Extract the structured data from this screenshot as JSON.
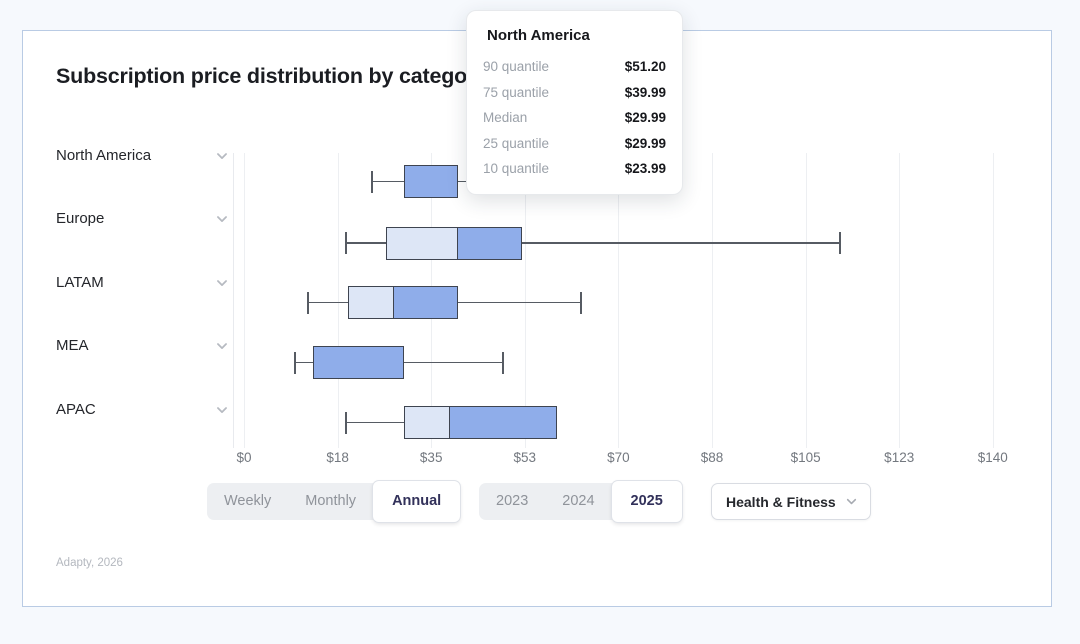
{
  "chart_data": {
    "type": "boxplot",
    "orientation": "horizontal",
    "title": "Subscription price distribution by category",
    "currency": "$",
    "x_axis": {
      "min": 0,
      "max": 140,
      "tick_values": [
        0,
        17.5,
        35,
        52.5,
        70,
        87.5,
        105,
        122.5,
        140
      ],
      "tick_labels": [
        "$0",
        "$18",
        "$35",
        "$53",
        "$70",
        "$88",
        "$105",
        "$123",
        "$140"
      ],
      "grid": true
    },
    "categories": [
      "North America",
      "Europe",
      "LATAM",
      "MEA",
      "APAC"
    ],
    "series": [
      {
        "name": "North America",
        "q10": 23.99,
        "q25": 29.99,
        "median": 29.99,
        "q75": 39.99,
        "q90": 51.2
      },
      {
        "name": "Europe",
        "q10": 18.99,
        "q25": 26.49,
        "median": 39.99,
        "q75": 51.99,
        "q90": 111.49
      },
      {
        "name": "LATAM",
        "q10": 11.99,
        "q25": 19.49,
        "median": 27.99,
        "q75": 39.99,
        "q90": 62.99
      },
      {
        "name": "MEA",
        "q10": 9.49,
        "q25": 12.99,
        "median": 12.99,
        "q75": 29.99,
        "q90": 48.49
      },
      {
        "name": "APAC",
        "q10": 18.99,
        "q25": 29.99,
        "median": 38.49,
        "q75": 58.49,
        "q90": 58.49
      }
    ]
  },
  "tooltip": {
    "title": "North America",
    "rows": [
      {
        "label": "90 quantile",
        "value": "$51.20"
      },
      {
        "label": "75 quantile",
        "value": "$39.99"
      },
      {
        "label": "Median",
        "value": "$29.99"
      },
      {
        "label": "25 quantile",
        "value": "$29.99"
      },
      {
        "label": "10 quantile",
        "value": "$23.99"
      }
    ]
  },
  "controls": {
    "period": {
      "options": [
        "Weekly",
        "Monthly",
        "Annual"
      ],
      "selected": "Annual"
    },
    "year": {
      "options": [
        "2023",
        "2024",
        "2025"
      ],
      "selected": "2025"
    },
    "category": {
      "value": "Health & Fitness",
      "icon": "chevron-down-icon"
    }
  },
  "regions_icon": "chevron-down-icon",
  "footer": "Adapty, 2026",
  "colors": {
    "box_fill_dark": "#8fadea",
    "box_fill_light": "#dde6f6",
    "box_border": "#3e4450",
    "whisker": "#565b63",
    "gridline": "#edeff2",
    "selected_text": "#32315a",
    "card_border": "#b9cbe4",
    "page_bg": "#f6f9fd"
  }
}
